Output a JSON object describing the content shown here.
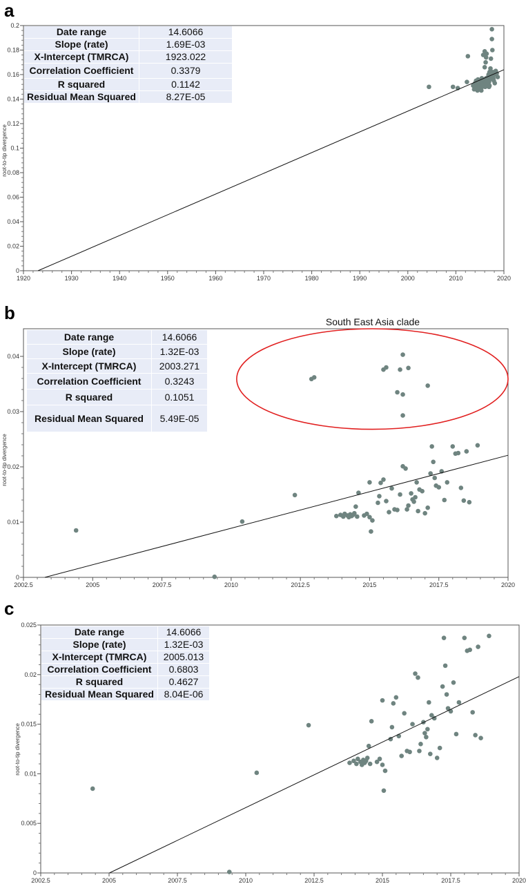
{
  "panel_labels": [
    "a",
    "b",
    "c"
  ],
  "point_color": "#6f8480",
  "annotation_color": "#e11f1f",
  "panels": {
    "a": {
      "stats": [
        {
          "key": "Date range",
          "value": "14.6066"
        },
        {
          "key": "Slope (rate)",
          "value": "1.69E-03"
        },
        {
          "key": "X-Intercept (TMRCA)",
          "value": "1923.022"
        },
        {
          "key": "Correlation Coefficient",
          "value": "0.3379"
        },
        {
          "key": "R squared",
          "value": "0.1142"
        },
        {
          "key": "Residual Mean Squared",
          "value": "8.27E-05"
        }
      ],
      "ylabel": "root-to-tip divergence"
    },
    "b": {
      "stats": [
        {
          "key": "Date range",
          "value": "14.6066"
        },
        {
          "key": "Slope (rate)",
          "value": "1.32E-03"
        },
        {
          "key": "X-Intercept (TMRCA)",
          "value": "2003.271"
        },
        {
          "key": "Correlation Coefficient",
          "value": "0.3243"
        },
        {
          "key": "R squared",
          "value": "0.1051"
        },
        {
          "key": "Residual Mean Squared",
          "value": "5.49E-05"
        }
      ],
      "ylabel": "root-to-tip divergence",
      "annotation": "South East Asia clade"
    },
    "c": {
      "stats": [
        {
          "key": "Date range",
          "value": "14.6066"
        },
        {
          "key": "Slope (rate)",
          "value": "1.32E-03"
        },
        {
          "key": "X-Intercept (TMRCA)",
          "value": "2005.013"
        },
        {
          "key": "Correlation Coefficient",
          "value": "0.6803"
        },
        {
          "key": "R squared",
          "value": "0.4627"
        },
        {
          "key": "Residual Mean Squared",
          "value": "8.04E-06"
        }
      ],
      "ylabel": "root-to-tip divergence"
    }
  },
  "chart_data": [
    {
      "type": "scatter",
      "panel": "a",
      "ylabel": "root-to-tip divergence",
      "xlim": [
        1920,
        2020
      ],
      "ylim": [
        0,
        0.2
      ],
      "xticks": [
        1920,
        1930,
        1940,
        1950,
        1960,
        1970,
        1980,
        1990,
        2000,
        2010,
        2020
      ],
      "xtick_labels": [
        "1920",
        "1930",
        "1940",
        "1950",
        "1960",
        "1970",
        "1980",
        "1990",
        "2000",
        "2010",
        "2020"
      ],
      "yticks": [
        0,
        0.02,
        0.04,
        0.06,
        0.08,
        0.1,
        0.12,
        0.14,
        0.16,
        0.18,
        0.2
      ],
      "ytick_labels": [
        "0",
        "0.02",
        "0.04",
        "0.06",
        "0.08",
        "0.1",
        "0.12",
        "0.14",
        "0.16",
        "0.18",
        "0.2"
      ],
      "regression": {
        "x": [
          1923.022,
          2020
        ],
        "y": [
          0,
          0.164
        ]
      },
      "points": [
        [
          2004.4,
          0.15
        ],
        [
          2009.4,
          0.15
        ],
        [
          2010.4,
          0.149
        ],
        [
          2012.3,
          0.154
        ],
        [
          2012.5,
          0.175
        ],
        [
          2013.6,
          0.151
        ],
        [
          2013.8,
          0.148
        ],
        [
          2014.0,
          0.153
        ],
        [
          2014.1,
          0.15
        ],
        [
          2014.2,
          0.155
        ],
        [
          2014.3,
          0.149
        ],
        [
          2014.4,
          0.152
        ],
        [
          2014.5,
          0.147
        ],
        [
          2014.6,
          0.156
        ],
        [
          2014.8,
          0.15
        ],
        [
          2015.0,
          0.153
        ],
        [
          2015.1,
          0.149
        ],
        [
          2015.2,
          0.155
        ],
        [
          2015.3,
          0.151
        ],
        [
          2015.4,
          0.157
        ],
        [
          2015.5,
          0.15
        ],
        [
          2015.6,
          0.154
        ],
        [
          2015.7,
          0.176
        ],
        [
          2015.8,
          0.152
        ],
        [
          2015.9,
          0.156
        ],
        [
          2016.0,
          0.166
        ],
        [
          2016.0,
          0.179
        ],
        [
          2016.1,
          0.15
        ],
        [
          2016.2,
          0.153
        ],
        [
          2016.2,
          0.17
        ],
        [
          2016.3,
          0.157
        ],
        [
          2016.3,
          0.174
        ],
        [
          2016.4,
          0.151
        ],
        [
          2016.4,
          0.177
        ],
        [
          2016.5,
          0.155
        ],
        [
          2016.6,
          0.152
        ],
        [
          2016.7,
          0.158
        ],
        [
          2016.8,
          0.16
        ],
        [
          2016.9,
          0.154
        ],
        [
          2017.0,
          0.162
        ],
        [
          2017.0,
          0.151
        ],
        [
          2017.1,
          0.156
        ],
        [
          2017.2,
          0.163
        ],
        [
          2017.3,
          0.173
        ],
        [
          2017.4,
          0.159
        ],
        [
          2017.5,
          0.189
        ],
        [
          2017.5,
          0.197
        ],
        [
          2017.6,
          0.18
        ],
        [
          2017.7,
          0.162
        ],
        [
          2017.8,
          0.157
        ],
        [
          2017.9,
          0.155
        ],
        [
          2018.0,
          0.16
        ],
        [
          2018.1,
          0.153
        ],
        [
          2018.3,
          0.163
        ],
        [
          2018.5,
          0.161
        ],
        [
          2016.9,
          0.15
        ],
        [
          2015.3,
          0.147
        ],
        [
          2017.2,
          0.165
        ],
        [
          2018.7,
          0.158
        ]
      ]
    },
    {
      "type": "scatter",
      "panel": "b",
      "ylabel": "root-to-tip divergence",
      "xlim": [
        2002.5,
        2020
      ],
      "ylim": [
        0,
        0.045
      ],
      "xticks": [
        2002.5,
        2005,
        2007.5,
        2010,
        2012.5,
        2015,
        2017.5,
        2020
      ],
      "xtick_labels": [
        "2002.5",
        "2005",
        "2007.5",
        "2010",
        "2012.5",
        "2015",
        "2017.5",
        "2020"
      ],
      "yticks": [
        0,
        0.01,
        0.02,
        0.03,
        0.04
      ],
      "ytick_labels": [
        "0",
        "0.01",
        "0.02",
        "0.03",
        "0.04"
      ],
      "regression": {
        "x": [
          2003.271,
          2020
        ],
        "y": [
          0,
          0.0221
        ]
      },
      "annotation": {
        "text": "South East Asia clade",
        "center": [
          2015.1,
          0.0359
        ],
        "radii": [
          4.9,
          0.0091
        ]
      },
      "points": [
        [
          2004.4,
          0.0085
        ],
        [
          2009.4,
          0.0001
        ],
        [
          2010.4,
          0.0101
        ],
        [
          2012.3,
          0.0149
        ],
        [
          2013.8,
          0.0111
        ],
        [
          2013.95,
          0.0113
        ],
        [
          2014.05,
          0.011
        ],
        [
          2014.1,
          0.0115
        ],
        [
          2014.2,
          0.0112
        ],
        [
          2014.25,
          0.0109
        ],
        [
          2014.3,
          0.0114
        ],
        [
          2014.35,
          0.0111
        ],
        [
          2014.4,
          0.0113
        ],
        [
          2014.45,
          0.0116
        ],
        [
          2014.5,
          0.0128
        ],
        [
          2014.55,
          0.011
        ],
        [
          2014.6,
          0.0153
        ],
        [
          2014.8,
          0.0112
        ],
        [
          2014.9,
          0.0115
        ],
        [
          2015.0,
          0.0172
        ],
        [
          2015.0,
          0.0109
        ],
        [
          2015.05,
          0.0083
        ],
        [
          2015.1,
          0.0103
        ],
        [
          2015.3,
          0.0135
        ],
        [
          2015.35,
          0.0147
        ],
        [
          2015.4,
          0.0171
        ],
        [
          2015.5,
          0.0177
        ],
        [
          2015.6,
          0.0138
        ],
        [
          2015.7,
          0.0118
        ],
        [
          2015.8,
          0.0161
        ],
        [
          2015.9,
          0.0123
        ],
        [
          2016.0,
          0.0122
        ],
        [
          2016.1,
          0.015
        ],
        [
          2016.2,
          0.0201
        ],
        [
          2016.3,
          0.0197
        ],
        [
          2016.35,
          0.0123
        ],
        [
          2016.4,
          0.013
        ],
        [
          2016.5,
          0.0152
        ],
        [
          2016.55,
          0.0141
        ],
        [
          2016.6,
          0.0137
        ],
        [
          2016.65,
          0.0145
        ],
        [
          2016.7,
          0.0172
        ],
        [
          2016.75,
          0.012
        ],
        [
          2016.8,
          0.0159
        ],
        [
          2016.9,
          0.0156
        ],
        [
          2017.0,
          0.0116
        ],
        [
          2017.1,
          0.0126
        ],
        [
          2017.2,
          0.0188
        ],
        [
          2017.25,
          0.0237
        ],
        [
          2017.3,
          0.0209
        ],
        [
          2017.35,
          0.018
        ],
        [
          2017.4,
          0.0166
        ],
        [
          2017.5,
          0.0163
        ],
        [
          2017.6,
          0.0192
        ],
        [
          2017.7,
          0.014
        ],
        [
          2017.8,
          0.0172
        ],
        [
          2018.0,
          0.0237
        ],
        [
          2018.1,
          0.0224
        ],
        [
          2018.2,
          0.0225
        ],
        [
          2018.3,
          0.0162
        ],
        [
          2018.4,
          0.0139
        ],
        [
          2018.5,
          0.0228
        ],
        [
          2018.6,
          0.0136
        ],
        [
          2018.9,
          0.0239
        ],
        [
          2012.9,
          0.0359
        ],
        [
          2013.0,
          0.0362
        ],
        [
          2015.5,
          0.0376
        ],
        [
          2015.6,
          0.038
        ],
        [
          2016.1,
          0.0376
        ],
        [
          2016.2,
          0.0403
        ],
        [
          2016.4,
          0.0379
        ],
        [
          2016.0,
          0.0335
        ],
        [
          2016.2,
          0.0331
        ],
        [
          2016.2,
          0.0293
        ],
        [
          2017.1,
          0.0347
        ]
      ]
    },
    {
      "type": "scatter",
      "panel": "c",
      "ylabel": "root-to-tip divergence",
      "xlim": [
        2002.5,
        2020
      ],
      "ylim": [
        0,
        0.025
      ],
      "xticks": [
        2002.5,
        2005,
        2007.5,
        2010,
        2012.5,
        2015,
        2017.5,
        2020
      ],
      "xtick_labels": [
        "2002.5",
        "2005",
        "2007.5",
        "2010",
        "2012.5",
        "2015",
        "2017.5",
        "2020"
      ],
      "yticks": [
        0,
        0.005,
        0.01,
        0.015,
        0.02,
        0.025
      ],
      "ytick_labels": [
        "0",
        "0.005",
        "0.01",
        "0.015",
        "0.02",
        "0.025"
      ],
      "regression": {
        "x": [
          2005.013,
          2020
        ],
        "y": [
          0,
          0.0198
        ]
      },
      "points": [
        [
          2004.4,
          0.0085
        ],
        [
          2009.4,
          0.0001
        ],
        [
          2010.4,
          0.0101
        ],
        [
          2012.3,
          0.0149
        ],
        [
          2013.8,
          0.0111
        ],
        [
          2013.95,
          0.0113
        ],
        [
          2014.05,
          0.011
        ],
        [
          2014.1,
          0.0115
        ],
        [
          2014.2,
          0.0112
        ],
        [
          2014.25,
          0.0109
        ],
        [
          2014.3,
          0.0114
        ],
        [
          2014.35,
          0.0111
        ],
        [
          2014.4,
          0.0113
        ],
        [
          2014.45,
          0.0116
        ],
        [
          2014.5,
          0.0128
        ],
        [
          2014.55,
          0.011
        ],
        [
          2014.6,
          0.0153
        ],
        [
          2014.8,
          0.0112
        ],
        [
          2014.9,
          0.0115
        ],
        [
          2015.0,
          0.0174
        ],
        [
          2015.0,
          0.0109
        ],
        [
          2015.05,
          0.0083
        ],
        [
          2015.1,
          0.0103
        ],
        [
          2015.3,
          0.0135
        ],
        [
          2015.35,
          0.0147
        ],
        [
          2015.4,
          0.0171
        ],
        [
          2015.5,
          0.0177
        ],
        [
          2015.6,
          0.0138
        ],
        [
          2015.7,
          0.0118
        ],
        [
          2015.8,
          0.0161
        ],
        [
          2015.9,
          0.0123
        ],
        [
          2016.0,
          0.0122
        ],
        [
          2016.1,
          0.015
        ],
        [
          2016.2,
          0.0201
        ],
        [
          2016.3,
          0.0197
        ],
        [
          2016.35,
          0.0123
        ],
        [
          2016.4,
          0.013
        ],
        [
          2016.5,
          0.0152
        ],
        [
          2016.55,
          0.0141
        ],
        [
          2016.6,
          0.0137
        ],
        [
          2016.65,
          0.0145
        ],
        [
          2016.7,
          0.0172
        ],
        [
          2016.75,
          0.012
        ],
        [
          2016.8,
          0.0159
        ],
        [
          2016.9,
          0.0156
        ],
        [
          2017.0,
          0.0116
        ],
        [
          2017.1,
          0.0126
        ],
        [
          2017.2,
          0.0188
        ],
        [
          2017.25,
          0.0237
        ],
        [
          2017.3,
          0.0209
        ],
        [
          2017.35,
          0.018
        ],
        [
          2017.4,
          0.0166
        ],
        [
          2017.5,
          0.0163
        ],
        [
          2017.6,
          0.0192
        ],
        [
          2017.7,
          0.014
        ],
        [
          2017.8,
          0.0172
        ],
        [
          2018.0,
          0.0237
        ],
        [
          2018.1,
          0.0224
        ],
        [
          2018.2,
          0.0225
        ],
        [
          2018.3,
          0.0162
        ],
        [
          2018.4,
          0.0139
        ],
        [
          2018.5,
          0.0228
        ],
        [
          2018.6,
          0.0136
        ],
        [
          2018.9,
          0.0239
        ]
      ]
    }
  ]
}
